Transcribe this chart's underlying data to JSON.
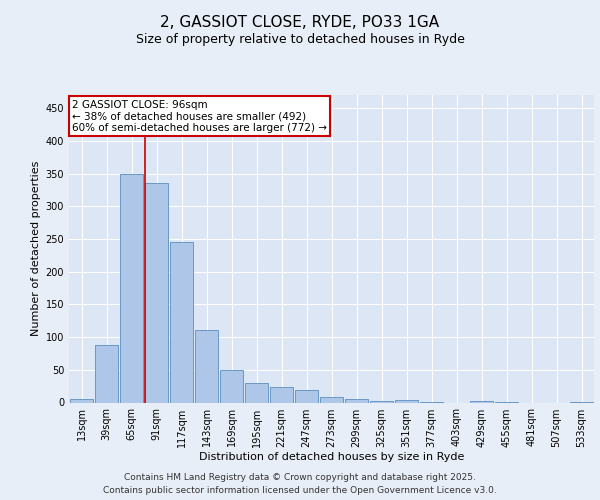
{
  "title1": "2, GASSIOT CLOSE, RYDE, PO33 1GA",
  "title2": "Size of property relative to detached houses in Ryde",
  "xlabel": "Distribution of detached houses by size in Ryde",
  "ylabel": "Number of detached properties",
  "categories": [
    "13sqm",
    "39sqm",
    "65sqm",
    "91sqm",
    "117sqm",
    "143sqm",
    "169sqm",
    "195sqm",
    "221sqm",
    "247sqm",
    "273sqm",
    "299sqm",
    "325sqm",
    "351sqm",
    "377sqm",
    "403sqm",
    "429sqm",
    "455sqm",
    "481sqm",
    "507sqm",
    "533sqm"
  ],
  "values": [
    5,
    88,
    349,
    335,
    245,
    111,
    49,
    30,
    23,
    19,
    9,
    5,
    3,
    4,
    1,
    0,
    3,
    1,
    0,
    0,
    1
  ],
  "bar_color": "#aec6e8",
  "bar_edge_color": "#5a8fc0",
  "bg_color": "#dce6f5",
  "grid_color": "#ffffff",
  "vline_color": "#cc0000",
  "annotation_box_color": "#cc0000",
  "ylim": [
    0,
    470
  ],
  "yticks": [
    0,
    50,
    100,
    150,
    200,
    250,
    300,
    350,
    400,
    450
  ],
  "footer": "Contains HM Land Registry data © Crown copyright and database right 2025.\nContains public sector information licensed under the Open Government Licence v3.0.",
  "title_fontsize": 11,
  "subtitle_fontsize": 9,
  "axis_label_fontsize": 8,
  "tick_fontsize": 7,
  "footer_fontsize": 6.5,
  "annot_fontsize": 7.5
}
